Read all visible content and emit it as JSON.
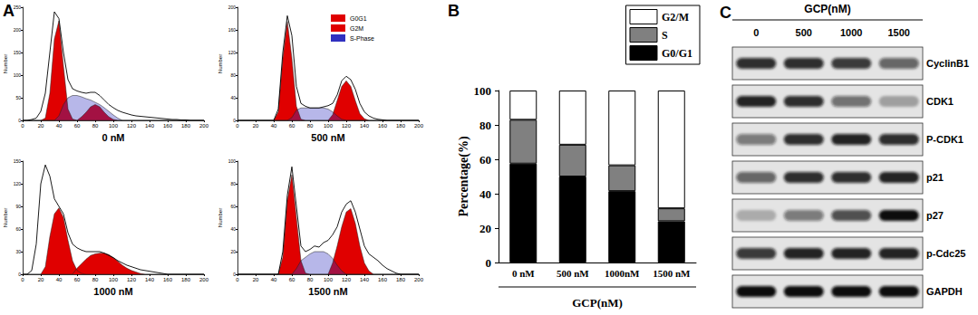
{
  "chart_data": [
    {
      "type": "line",
      "panel": "A",
      "title": "0 nM",
      "ylabel": "Number",
      "x": [
        0,
        5,
        10,
        15,
        20,
        25,
        30,
        35,
        40,
        45,
        50,
        55,
        60,
        65,
        70,
        75,
        80,
        85,
        90,
        95,
        100,
        105,
        110,
        115,
        120,
        125,
        130,
        135,
        140,
        145,
        150,
        155,
        160,
        165,
        170,
        175,
        180,
        185,
        190,
        195,
        200
      ],
      "xlim": [
        0,
        200
      ],
      "xticks": [
        0,
        20,
        40,
        60,
        80,
        100,
        120,
        140,
        160,
        180,
        200
      ],
      "ylim": [
        0,
        250
      ],
      "yticks": [
        0,
        50,
        100,
        150,
        200,
        250
      ],
      "series": [
        {
          "type": "area",
          "name": "G0G1",
          "color": "#e00000",
          "values": [
            0,
            0,
            0,
            0,
            0,
            5,
            60,
            180,
            220,
            120,
            25,
            3,
            0,
            0,
            0,
            0,
            0,
            0,
            0,
            0,
            0,
            0,
            0,
            0,
            0,
            0,
            0,
            0,
            0,
            0,
            0,
            0,
            0,
            0,
            0,
            0,
            0,
            0,
            0,
            0,
            0
          ]
        },
        {
          "type": "area",
          "name": "G2M",
          "color": "#e00000",
          "values": [
            0,
            0,
            0,
            0,
            0,
            0,
            0,
            0,
            0,
            0,
            0,
            0,
            0,
            8,
            18,
            30,
            35,
            30,
            18,
            8,
            2,
            0,
            0,
            0,
            0,
            0,
            0,
            0,
            0,
            0,
            0,
            0,
            0,
            0,
            0,
            0,
            0,
            0,
            0,
            0,
            0
          ]
        },
        {
          "type": "area",
          "name": "S-Phase",
          "color": "#3030c0",
          "values": [
            0,
            0,
            0,
            0,
            0,
            0,
            0,
            0,
            10,
            35,
            50,
            55,
            55,
            52,
            48,
            45,
            40,
            35,
            28,
            20,
            12,
            5,
            0,
            0,
            0,
            0,
            0,
            0,
            0,
            0,
            0,
            0,
            0,
            0,
            0,
            0,
            0,
            0,
            0,
            0,
            0
          ]
        },
        {
          "type": "line",
          "color": "#000000",
          "values": [
            0,
            0,
            2,
            5,
            20,
            60,
            150,
            240,
            225,
            150,
            90,
            70,
            65,
            62,
            60,
            62,
            62,
            55,
            45,
            35,
            28,
            22,
            18,
            15,
            12,
            10,
            9,
            8,
            7,
            6,
            5,
            4,
            3,
            2,
            2,
            1,
            1,
            0,
            0,
            0,
            0
          ]
        }
      ]
    },
    {
      "type": "line",
      "title": "500 nM",
      "ylabel": "Number",
      "legend": "top left",
      "x": [
        0,
        5,
        10,
        15,
        20,
        25,
        30,
        35,
        40,
        45,
        50,
        55,
        60,
        65,
        70,
        75,
        80,
        85,
        90,
        95,
        100,
        105,
        110,
        115,
        120,
        125,
        130,
        135,
        140,
        145,
        150,
        155,
        160,
        165,
        170,
        175,
        180,
        185,
        190,
        195,
        200
      ],
      "xlim": [
        0,
        200
      ],
      "xticks": [
        0,
        20,
        40,
        60,
        80,
        100,
        120,
        140,
        160,
        180,
        200
      ],
      "ylim": [
        0,
        200
      ],
      "yticks": [
        0,
        40,
        80,
        120,
        160,
        200
      ],
      "series": [
        {
          "type": "area",
          "name": "G0G1",
          "color": "#e00000",
          "values": [
            0,
            0,
            0,
            0,
            0,
            0,
            0,
            0,
            0,
            15,
            110,
            175,
            110,
            25,
            2,
            0,
            0,
            0,
            0,
            0,
            0,
            0,
            0,
            0,
            0,
            0,
            0,
            0,
            0,
            0,
            0,
            0,
            0,
            0,
            0,
            0,
            0,
            0,
            0,
            0,
            0
          ]
        },
        {
          "type": "area",
          "name": "G2M",
          "color": "#e00000",
          "values": [
            0,
            0,
            0,
            0,
            0,
            0,
            0,
            0,
            0,
            0,
            0,
            0,
            0,
            0,
            0,
            0,
            0,
            0,
            0,
            0,
            0,
            10,
            35,
            60,
            70,
            60,
            35,
            12,
            3,
            0,
            0,
            0,
            0,
            0,
            0,
            0,
            0,
            0,
            0,
            0,
            0
          ]
        },
        {
          "type": "area",
          "name": "S-Phase",
          "color": "#3030c0",
          "values": [
            0,
            0,
            0,
            0,
            0,
            0,
            0,
            0,
            0,
            0,
            0,
            0,
            5,
            18,
            22,
            22,
            22,
            22,
            22,
            22,
            20,
            15,
            8,
            2,
            0,
            0,
            0,
            0,
            0,
            0,
            0,
            0,
            0,
            0,
            0,
            0,
            0,
            0,
            0,
            0,
            0
          ]
        },
        {
          "type": "line",
          "color": "#000000",
          "values": [
            0,
            0,
            0,
            0,
            0,
            0,
            0,
            0,
            0,
            20,
            120,
            185,
            150,
            60,
            30,
            25,
            22,
            22,
            22,
            24,
            26,
            30,
            45,
            70,
            78,
            72,
            55,
            30,
            15,
            8,
            4,
            2,
            1,
            0,
            0,
            0,
            0,
            0,
            0,
            0,
            0
          ]
        }
      ]
    },
    {
      "type": "line",
      "title": "1000 nM",
      "ylabel": "Number",
      "x": [
        0,
        5,
        10,
        15,
        20,
        25,
        30,
        35,
        40,
        45,
        50,
        55,
        60,
        65,
        70,
        75,
        80,
        85,
        90,
        95,
        100,
        105,
        110,
        115,
        120,
        125,
        130,
        135,
        140,
        145,
        150,
        155,
        160,
        165,
        170,
        175,
        180,
        185,
        190,
        195,
        200
      ],
      "xlim": [
        0,
        200
      ],
      "xticks": [
        0,
        20,
        40,
        60,
        80,
        100,
        120,
        140,
        160,
        180,
        200
      ],
      "ylim": [
        0,
        150
      ],
      "yticks": [
        0,
        30,
        60,
        90,
        120,
        150
      ],
      "series": [
        {
          "type": "area",
          "name": "G0G1",
          "color": "#e00000",
          "values": [
            0,
            0,
            0,
            0,
            0,
            10,
            50,
            80,
            88,
            75,
            45,
            18,
            5,
            1,
            0,
            0,
            0,
            0,
            0,
            0,
            0,
            0,
            0,
            0,
            0,
            0,
            0,
            0,
            0,
            0,
            0,
            0,
            0,
            0,
            0,
            0,
            0,
            0,
            0,
            0,
            0
          ]
        },
        {
          "type": "area",
          "name": "G2M",
          "color": "#e00000",
          "values": [
            0,
            0,
            0,
            0,
            0,
            0,
            0,
            0,
            0,
            0,
            0,
            0,
            8,
            14,
            20,
            25,
            27,
            28,
            28,
            26,
            22,
            17,
            12,
            8,
            5,
            3,
            1,
            0,
            0,
            0,
            0,
            0,
            0,
            0,
            0,
            0,
            0,
            0,
            0,
            0,
            0
          ]
        },
        {
          "type": "line",
          "color": "#000000",
          "values": [
            0,
            0,
            5,
            40,
            120,
            145,
            130,
            100,
            90,
            80,
            55,
            40,
            35,
            32,
            30,
            30,
            30,
            30,
            28,
            25,
            22,
            18,
            15,
            12,
            10,
            8,
            6,
            5,
            4,
            3,
            2,
            1,
            0,
            0,
            0,
            0,
            0,
            0,
            0,
            0,
            0
          ]
        }
      ]
    },
    {
      "type": "line",
      "title": "1500 nM",
      "ylabel": "Number",
      "x": [
        0,
        5,
        10,
        15,
        20,
        25,
        30,
        35,
        40,
        45,
        50,
        55,
        60,
        65,
        70,
        75,
        80,
        85,
        90,
        95,
        100,
        105,
        110,
        115,
        120,
        125,
        130,
        135,
        140,
        145,
        150,
        155,
        160,
        165,
        170,
        175,
        180,
        185,
        190,
        195,
        200
      ],
      "xlim": [
        0,
        200
      ],
      "xticks": [
        0,
        20,
        40,
        60,
        80,
        100,
        120,
        140,
        160,
        180,
        200
      ],
      "ylim": [
        0,
        100
      ],
      "yticks": [
        0,
        20,
        40,
        60,
        80,
        100
      ],
      "series": [
        {
          "type": "area",
          "name": "G0G1",
          "color": "#e00000",
          "values": [
            0,
            0,
            0,
            0,
            0,
            0,
            0,
            0,
            0,
            0,
            15,
            65,
            88,
            50,
            12,
            1,
            0,
            0,
            0,
            0,
            0,
            0,
            0,
            0,
            0,
            0,
            0,
            0,
            0,
            0,
            0,
            0,
            0,
            0,
            0,
            0,
            0,
            0,
            0,
            0,
            0
          ]
        },
        {
          "type": "area",
          "name": "G2M",
          "color": "#e00000",
          "values": [
            0,
            0,
            0,
            0,
            0,
            0,
            0,
            0,
            0,
            0,
            0,
            0,
            0,
            0,
            0,
            0,
            0,
            0,
            0,
            0,
            0,
            10,
            25,
            42,
            55,
            58,
            45,
            25,
            10,
            3,
            0,
            0,
            0,
            0,
            0,
            0,
            0,
            0,
            0,
            0,
            0
          ]
        },
        {
          "type": "area",
          "name": "S-Phase",
          "color": "#3030c0",
          "values": [
            0,
            0,
            0,
            0,
            0,
            0,
            0,
            0,
            0,
            0,
            0,
            0,
            0,
            5,
            12,
            15,
            18,
            20,
            20,
            20,
            18,
            14,
            8,
            3,
            0,
            0,
            0,
            0,
            0,
            0,
            0,
            0,
            0,
            0,
            0,
            0,
            0,
            0,
            0,
            0,
            0
          ]
        },
        {
          "type": "line",
          "color": "#000000",
          "values": [
            0,
            0,
            0,
            0,
            0,
            0,
            0,
            0,
            0,
            0,
            20,
            70,
            95,
            60,
            25,
            20,
            22,
            25,
            24,
            28,
            30,
            35,
            42,
            55,
            62,
            65,
            55,
            40,
            25,
            18,
            15,
            12,
            8,
            5,
            3,
            1,
            0,
            0,
            0,
            0,
            0
          ]
        }
      ]
    },
    {
      "type": "bar",
      "panel": "B",
      "stacked": true,
      "legend": "top right",
      "categories": [
        "0 nM",
        "500 nM",
        "1000nM",
        "1500 nM"
      ],
      "xlabel": "GCP(nM)",
      "ylabel": "Percentage(%)",
      "ylim": [
        0,
        100
      ],
      "yticks": [
        0,
        20,
        40,
        60,
        80,
        100
      ],
      "series": [
        {
          "name": "G0/G1",
          "color": "#000000",
          "values": [
            57.5,
            50,
            41.5,
            24
          ]
        },
        {
          "name": "S",
          "color": "#808080",
          "values": [
            25.5,
            18.5,
            15,
            7.5
          ]
        },
        {
          "name": "G2/M",
          "color": "#ffffff",
          "values": [
            17,
            31.5,
            43.5,
            68.5
          ]
        }
      ]
    }
  ],
  "blot": {
    "panel": "C",
    "title": "GCP(nM)",
    "lanes": [
      "0",
      "500",
      "1000",
      "1500"
    ],
    "rows": [
      {
        "label": "CyclinB1",
        "intensity": [
          0.85,
          0.85,
          0.8,
          0.6
        ]
      },
      {
        "label": "CDK1",
        "intensity": [
          0.9,
          0.85,
          0.55,
          0.3
        ]
      },
      {
        "label": "P-CDK1",
        "intensity": [
          0.5,
          0.85,
          0.9,
          0.85
        ]
      },
      {
        "label": "p21",
        "intensity": [
          0.6,
          0.85,
          0.85,
          0.9
        ]
      },
      {
        "label": "p27",
        "intensity": [
          0.25,
          0.5,
          0.7,
          1.0
        ]
      },
      {
        "label": "p-Cdc25",
        "intensity": [
          0.8,
          0.9,
          0.9,
          0.9
        ]
      },
      {
        "label": "GAPDH",
        "intensity": [
          1.0,
          1.0,
          1.0,
          1.0
        ]
      }
    ]
  }
}
